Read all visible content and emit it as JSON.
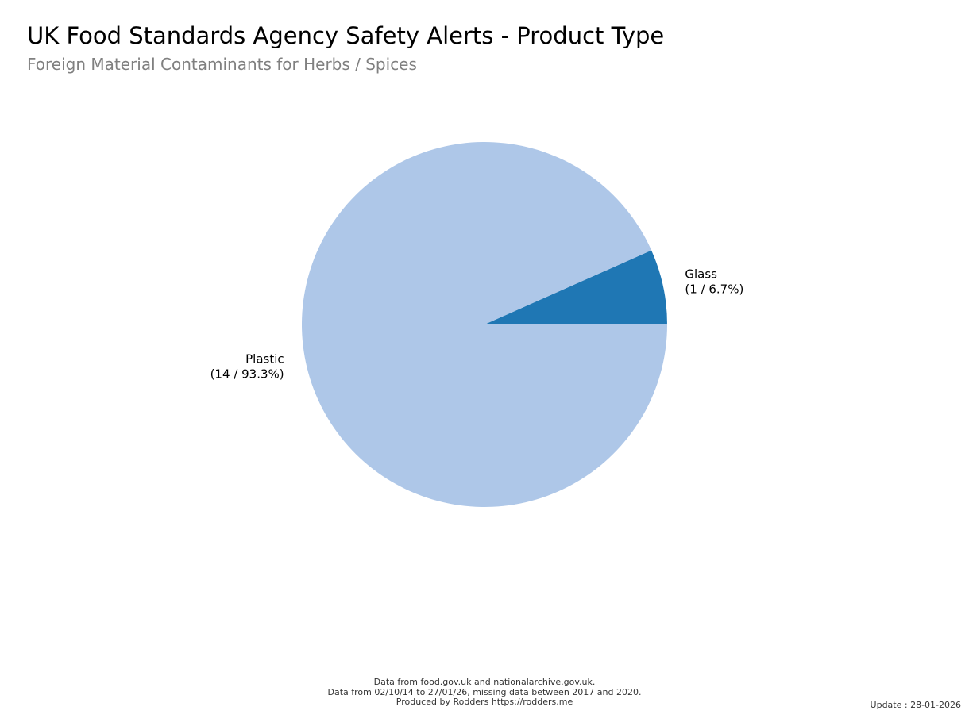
{
  "header": {
    "title": "UK Food Standards Agency Safety Alerts - Product Type",
    "subtitle": "Foreign Material Contaminants for Herbs / Spices"
  },
  "chart_data": {
    "type": "pie",
    "title": "UK Food Standards Agency Safety Alerts - Product Type",
    "subtitle": "Foreign Material Contaminants for Herbs / Spices",
    "slices": [
      {
        "label": "Glass",
        "value": 1,
        "percent": 6.7,
        "detail": "(1 / 6.7%)",
        "color": "#1f77b4"
      },
      {
        "label": "Plastic",
        "value": 14,
        "percent": 93.3,
        "detail": "(14 / 93.3%)",
        "color": "#aec7e8"
      }
    ],
    "start_angle_deg": 0,
    "direction": "counterclockwise",
    "legend": "none"
  },
  "footer": {
    "line1": "Data from food.gov.uk and nationalarchive.gov.uk.",
    "line2": "Data from 02/10/14 to 27/01/26, missing data between 2017 and 2020.",
    "line3": "Produced by Rodders https://rodders.me",
    "update": "Update : 28-01-2026"
  }
}
